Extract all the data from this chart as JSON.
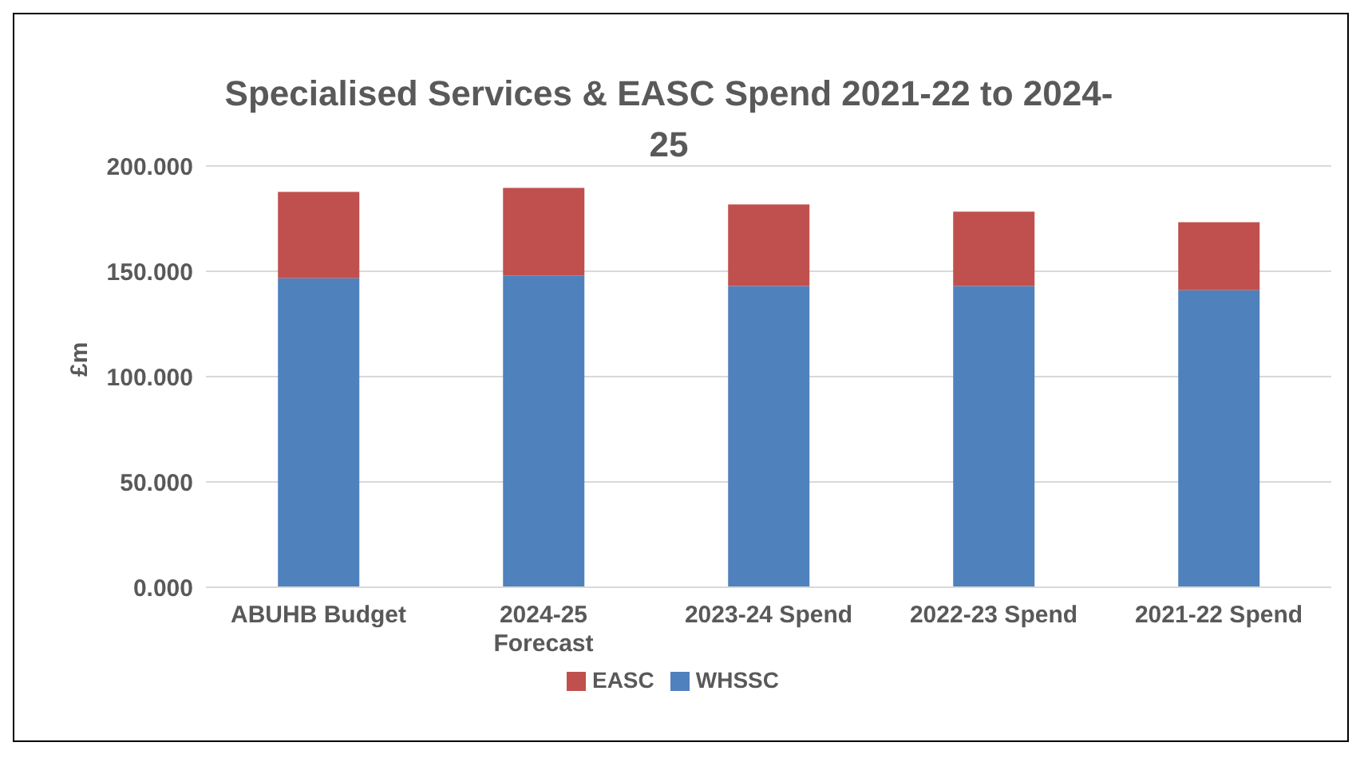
{
  "chart_data": {
    "type": "bar",
    "title": "Specialised Services  & EASC Spend 2021-22 to 2024-25",
    "ylabel": "£m",
    "categories": [
      "ABUHB Budget",
      "2024-25 Forecast",
      "2023-24 Spend",
      "2022-23 Spend",
      "2021-22 Spend"
    ],
    "series": [
      {
        "name": "WHSSC",
        "color": "#4f81bd",
        "values": [
          146.7,
          148,
          143,
          143,
          141
        ]
      },
      {
        "name": "EASC",
        "color": "#c0504d",
        "values": [
          41,
          41.6,
          38.7,
          35.3,
          32.3
        ]
      }
    ],
    "stacked": true,
    "ylim": [
      0,
      200
    ],
    "yticks": [
      {
        "value": 0,
        "label": "0.000"
      },
      {
        "value": 50,
        "label": "50.000"
      },
      {
        "value": 100,
        "label": "100.000"
      },
      {
        "value": 150,
        "label": "150.000"
      },
      {
        "value": 200,
        "label": "200.000"
      }
    ],
    "grid": "y",
    "legend": "bottom"
  }
}
